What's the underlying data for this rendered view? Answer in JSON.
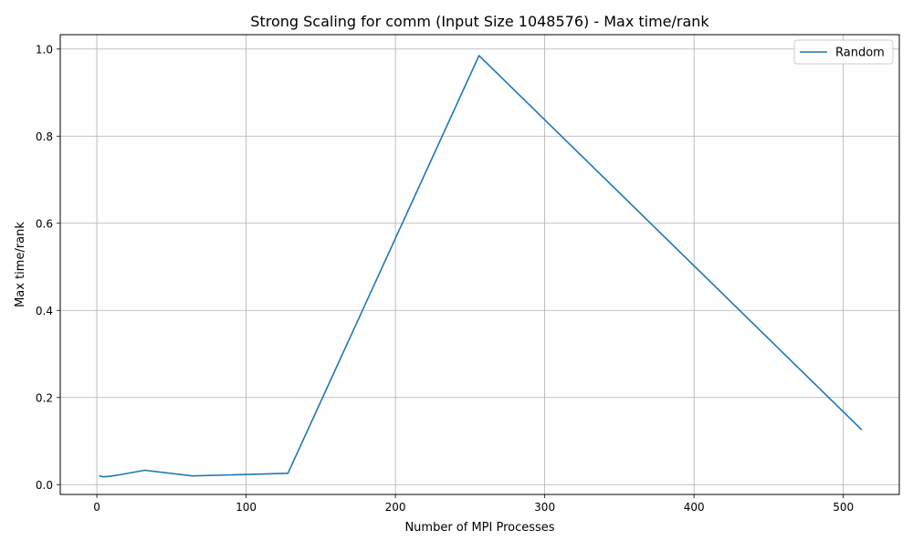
{
  "chart_data": {
    "type": "line",
    "title": "Strong Scaling for comm (Input Size 1048576) - Max time/rank",
    "xlabel": "Number of MPI Processes",
    "ylabel": "Max time/rank",
    "xlim": [
      -24.5,
      537.5
    ],
    "ylim": [
      -0.0225,
      1.033
    ],
    "xticks": [
      0,
      100,
      200,
      300,
      400,
      500
    ],
    "xtick_labels": [
      "0",
      "100",
      "200",
      "300",
      "400",
      "500"
    ],
    "yticks": [
      0.0,
      0.2,
      0.4,
      0.6,
      0.8,
      1.0
    ],
    "ytick_labels": [
      "0.0",
      "0.2",
      "0.4",
      "0.6",
      "0.8",
      "1.0"
    ],
    "grid": true,
    "legend_position": "top-right",
    "series": [
      {
        "name": "Random",
        "color": "#1f77b4",
        "x": [
          2,
          4,
          8,
          16,
          32,
          64,
          128,
          256,
          512
        ],
        "y": [
          0.02,
          0.018,
          0.019,
          0.023,
          0.033,
          0.02,
          0.026,
          0.985,
          0.127
        ]
      }
    ]
  }
}
